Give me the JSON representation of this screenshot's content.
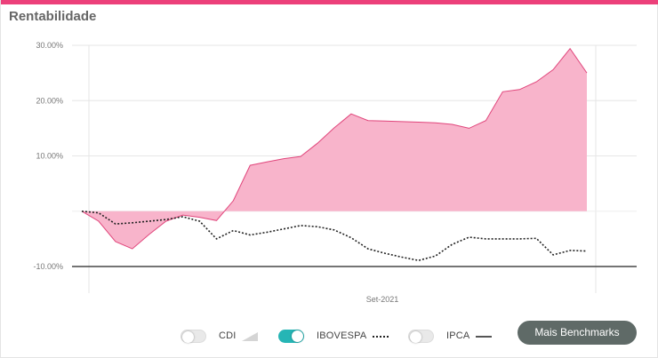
{
  "card": {
    "title": "Rentabilidade",
    "accent_color": "#ec407a"
  },
  "legend": {
    "items": [
      {
        "label": "CDI",
        "enabled": false,
        "symbol": "area-wedge-icon"
      },
      {
        "label": "IBOVESPA",
        "enabled": true,
        "symbol": "dotted-line-icon"
      },
      {
        "label": "IPCA",
        "enabled": false,
        "symbol": "solid-line-icon"
      }
    ],
    "toggle_on_color": "#26b5b5"
  },
  "more_benchmarks": {
    "label": "Mais Benchmarks"
  },
  "chart_data": {
    "type": "area",
    "xlabel": "",
    "ylabel": "",
    "x_tick_labels": [
      "Set-2021"
    ],
    "y_tick_labels": [
      "30.00%",
      "20.00%",
      "10.00%",
      "-10.00%"
    ],
    "y_ticks": [
      30,
      20,
      10,
      -10
    ],
    "ylim": [
      -12.5,
      32.5
    ],
    "grid": true,
    "zero_line_shown": false,
    "fill_color": "#f8b4cb",
    "line_color": "#e0457b",
    "benchmark_color": "#222222",
    "series": [
      {
        "kind": "portfolio-area",
        "values": [
          0,
          -1.8,
          -5.5,
          -6.8,
          -4.2,
          -1.8,
          -0.7,
          -1.1,
          -1.7,
          1.9,
          8.3,
          8.9,
          9.5,
          9.9,
          12.3,
          15.1,
          17.6,
          16.4,
          16.3,
          16.2,
          16.1,
          16.0,
          15.7,
          15.0,
          16.4,
          21.6,
          22.0,
          23.4,
          25.6,
          29.4,
          25.0
        ]
      },
      {
        "name": "IBOVESPA",
        "kind": "benchmark-dotted",
        "values": [
          0,
          -0.3,
          -2.3,
          -2.1,
          -1.8,
          -1.5,
          -1.0,
          -1.8,
          -5.0,
          -3.5,
          -4.3,
          -3.8,
          -3.2,
          -2.6,
          -2.8,
          -3.4,
          -4.8,
          -6.8,
          -7.6,
          -8.3,
          -8.9,
          -8.1,
          -6.0,
          -4.7,
          -5.0,
          -5.0,
          -5.0,
          -4.9,
          -7.9,
          -7.1,
          -7.2
        ]
      }
    ]
  }
}
